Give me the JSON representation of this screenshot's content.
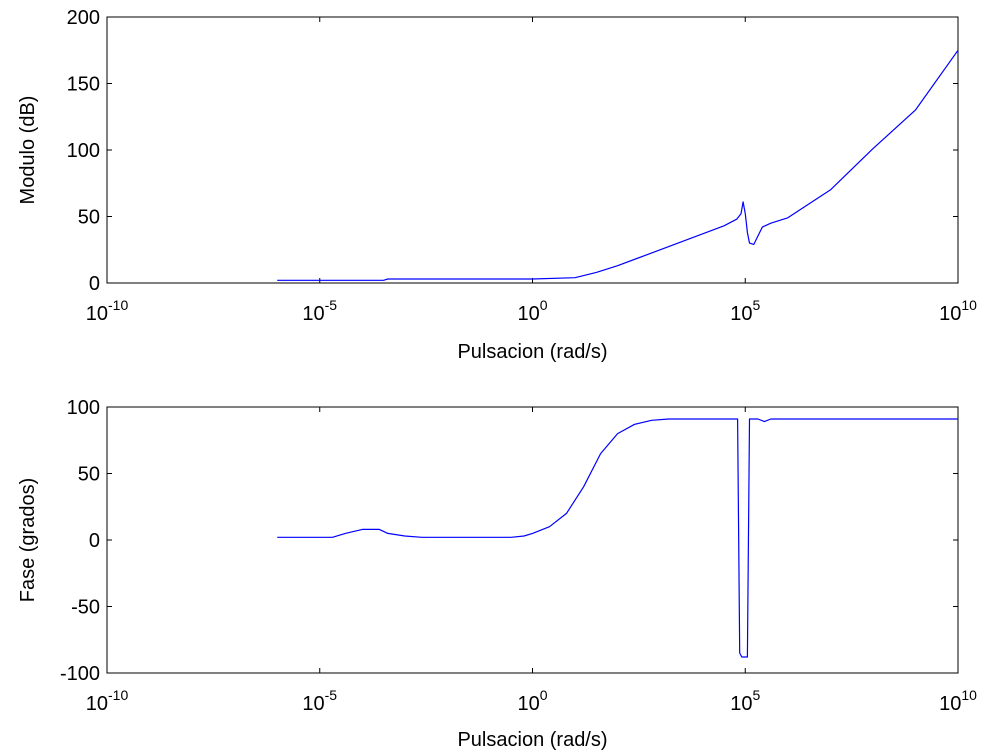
{
  "chart_data": [
    {
      "type": "line",
      "xlabel": "Pulsacion (rad/s)",
      "ylabel": "Modulo (dB)",
      "xscale": "log",
      "xlim_exp": [
        -10,
        10
      ],
      "ylim": [
        0,
        200
      ],
      "x_tick_exponents": [
        -10,
        -5,
        0,
        5,
        10
      ],
      "x_tick_base": "10",
      "y_ticks": [
        0,
        50,
        100,
        150,
        200
      ],
      "grid": false,
      "line_color": "#0000ff",
      "series": [
        {
          "x_exp": [
            -6,
            -3.5,
            -3.4,
            0,
            1,
            1.5,
            2,
            3,
            4,
            4.5,
            4.8,
            4.9,
            4.95,
            5.0,
            5.05,
            5.1,
            5.2,
            5.4,
            5.6,
            6,
            7,
            8,
            9,
            10
          ],
          "values": [
            2,
            2,
            3,
            3,
            4,
            8,
            13,
            25,
            37,
            43,
            48,
            52,
            61,
            52,
            38,
            30,
            29,
            42,
            45,
            49,
            70,
            101,
            130,
            175
          ]
        }
      ]
    },
    {
      "type": "line",
      "xlabel": "Pulsacion (rad/s)",
      "ylabel": "Fase (grados)",
      "xscale": "log",
      "xlim_exp": [
        -10,
        10
      ],
      "ylim": [
        -100,
        100
      ],
      "x_tick_exponents": [
        -10,
        -5,
        0,
        5,
        10
      ],
      "x_tick_base": "10",
      "y_ticks": [
        -100,
        -50,
        0,
        50,
        100
      ],
      "grid": false,
      "line_color": "#0000ff",
      "series": [
        {
          "x_exp": [
            -6,
            -4.7,
            -4.4,
            -4.0,
            -3.6,
            -3.4,
            -3.0,
            -2.6,
            -1.5,
            -0.5,
            -0.2,
            0,
            0.4,
            0.8,
            1.2,
            1.6,
            2.0,
            2.4,
            2.8,
            3.2,
            3.6,
            4.0,
            4.5,
            4.82,
            4.87,
            4.92,
            5.05,
            5.1,
            5.15,
            5.3,
            5.45,
            5.6,
            7,
            10
          ],
          "values": [
            2,
            2,
            5,
            8,
            8,
            5,
            3,
            2,
            2,
            2,
            3,
            5,
            10,
            20,
            40,
            65,
            80,
            87,
            90,
            91,
            91,
            91,
            91,
            91,
            -85,
            -88,
            -88,
            91,
            91,
            91,
            89,
            91,
            91,
            91
          ]
        }
      ]
    }
  ]
}
